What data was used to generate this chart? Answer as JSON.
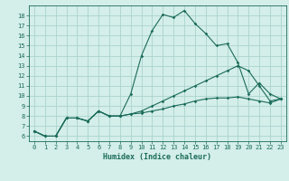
{
  "xlabel": "Humidex (Indice chaleur)",
  "bg_color": "#d4eeea",
  "grid_color": "#aad4cc",
  "line_color": "#1a6b5a",
  "xlim": [
    -0.5,
    23.5
  ],
  "ylim": [
    5.5,
    19.0
  ],
  "xticks": [
    0,
    1,
    2,
    3,
    4,
    5,
    6,
    7,
    8,
    9,
    10,
    11,
    12,
    13,
    14,
    15,
    16,
    17,
    18,
    19,
    20,
    21,
    22,
    23
  ],
  "yticks": [
    6,
    7,
    8,
    9,
    10,
    11,
    12,
    13,
    14,
    15,
    16,
    17,
    18
  ],
  "line1_x": [
    0,
    1,
    2,
    3,
    4,
    5,
    6,
    7,
    8,
    9,
    10,
    11,
    12,
    13,
    14,
    15,
    16,
    17,
    18,
    19,
    20,
    21,
    22,
    23
  ],
  "line1_y": [
    6.5,
    6.0,
    6.0,
    7.8,
    7.8,
    7.5,
    8.5,
    8.0,
    8.0,
    10.2,
    14.0,
    16.5,
    18.1,
    17.8,
    18.5,
    17.2,
    16.2,
    15.0,
    15.2,
    13.3,
    10.2,
    11.3,
    10.2,
    9.7
  ],
  "line2_x": [
    0,
    1,
    2,
    3,
    4,
    5,
    6,
    7,
    8,
    9,
    10,
    11,
    12,
    13,
    14,
    15,
    16,
    17,
    18,
    19,
    20,
    21,
    22,
    23
  ],
  "line2_y": [
    6.5,
    6.0,
    6.0,
    7.8,
    7.8,
    7.5,
    8.5,
    8.0,
    8.0,
    8.2,
    8.5,
    9.0,
    9.5,
    10.0,
    10.5,
    11.0,
    11.5,
    12.0,
    12.5,
    13.0,
    12.5,
    11.0,
    9.5,
    9.7
  ],
  "line3_x": [
    0,
    1,
    2,
    3,
    4,
    5,
    6,
    7,
    8,
    9,
    10,
    11,
    12,
    13,
    14,
    15,
    16,
    17,
    18,
    19,
    20,
    21,
    22,
    23
  ],
  "line3_y": [
    6.5,
    6.0,
    6.0,
    7.8,
    7.8,
    7.5,
    8.5,
    8.0,
    8.0,
    8.2,
    8.3,
    8.5,
    8.7,
    9.0,
    9.2,
    9.5,
    9.7,
    9.8,
    9.8,
    9.9,
    9.7,
    9.5,
    9.3,
    9.7
  ]
}
